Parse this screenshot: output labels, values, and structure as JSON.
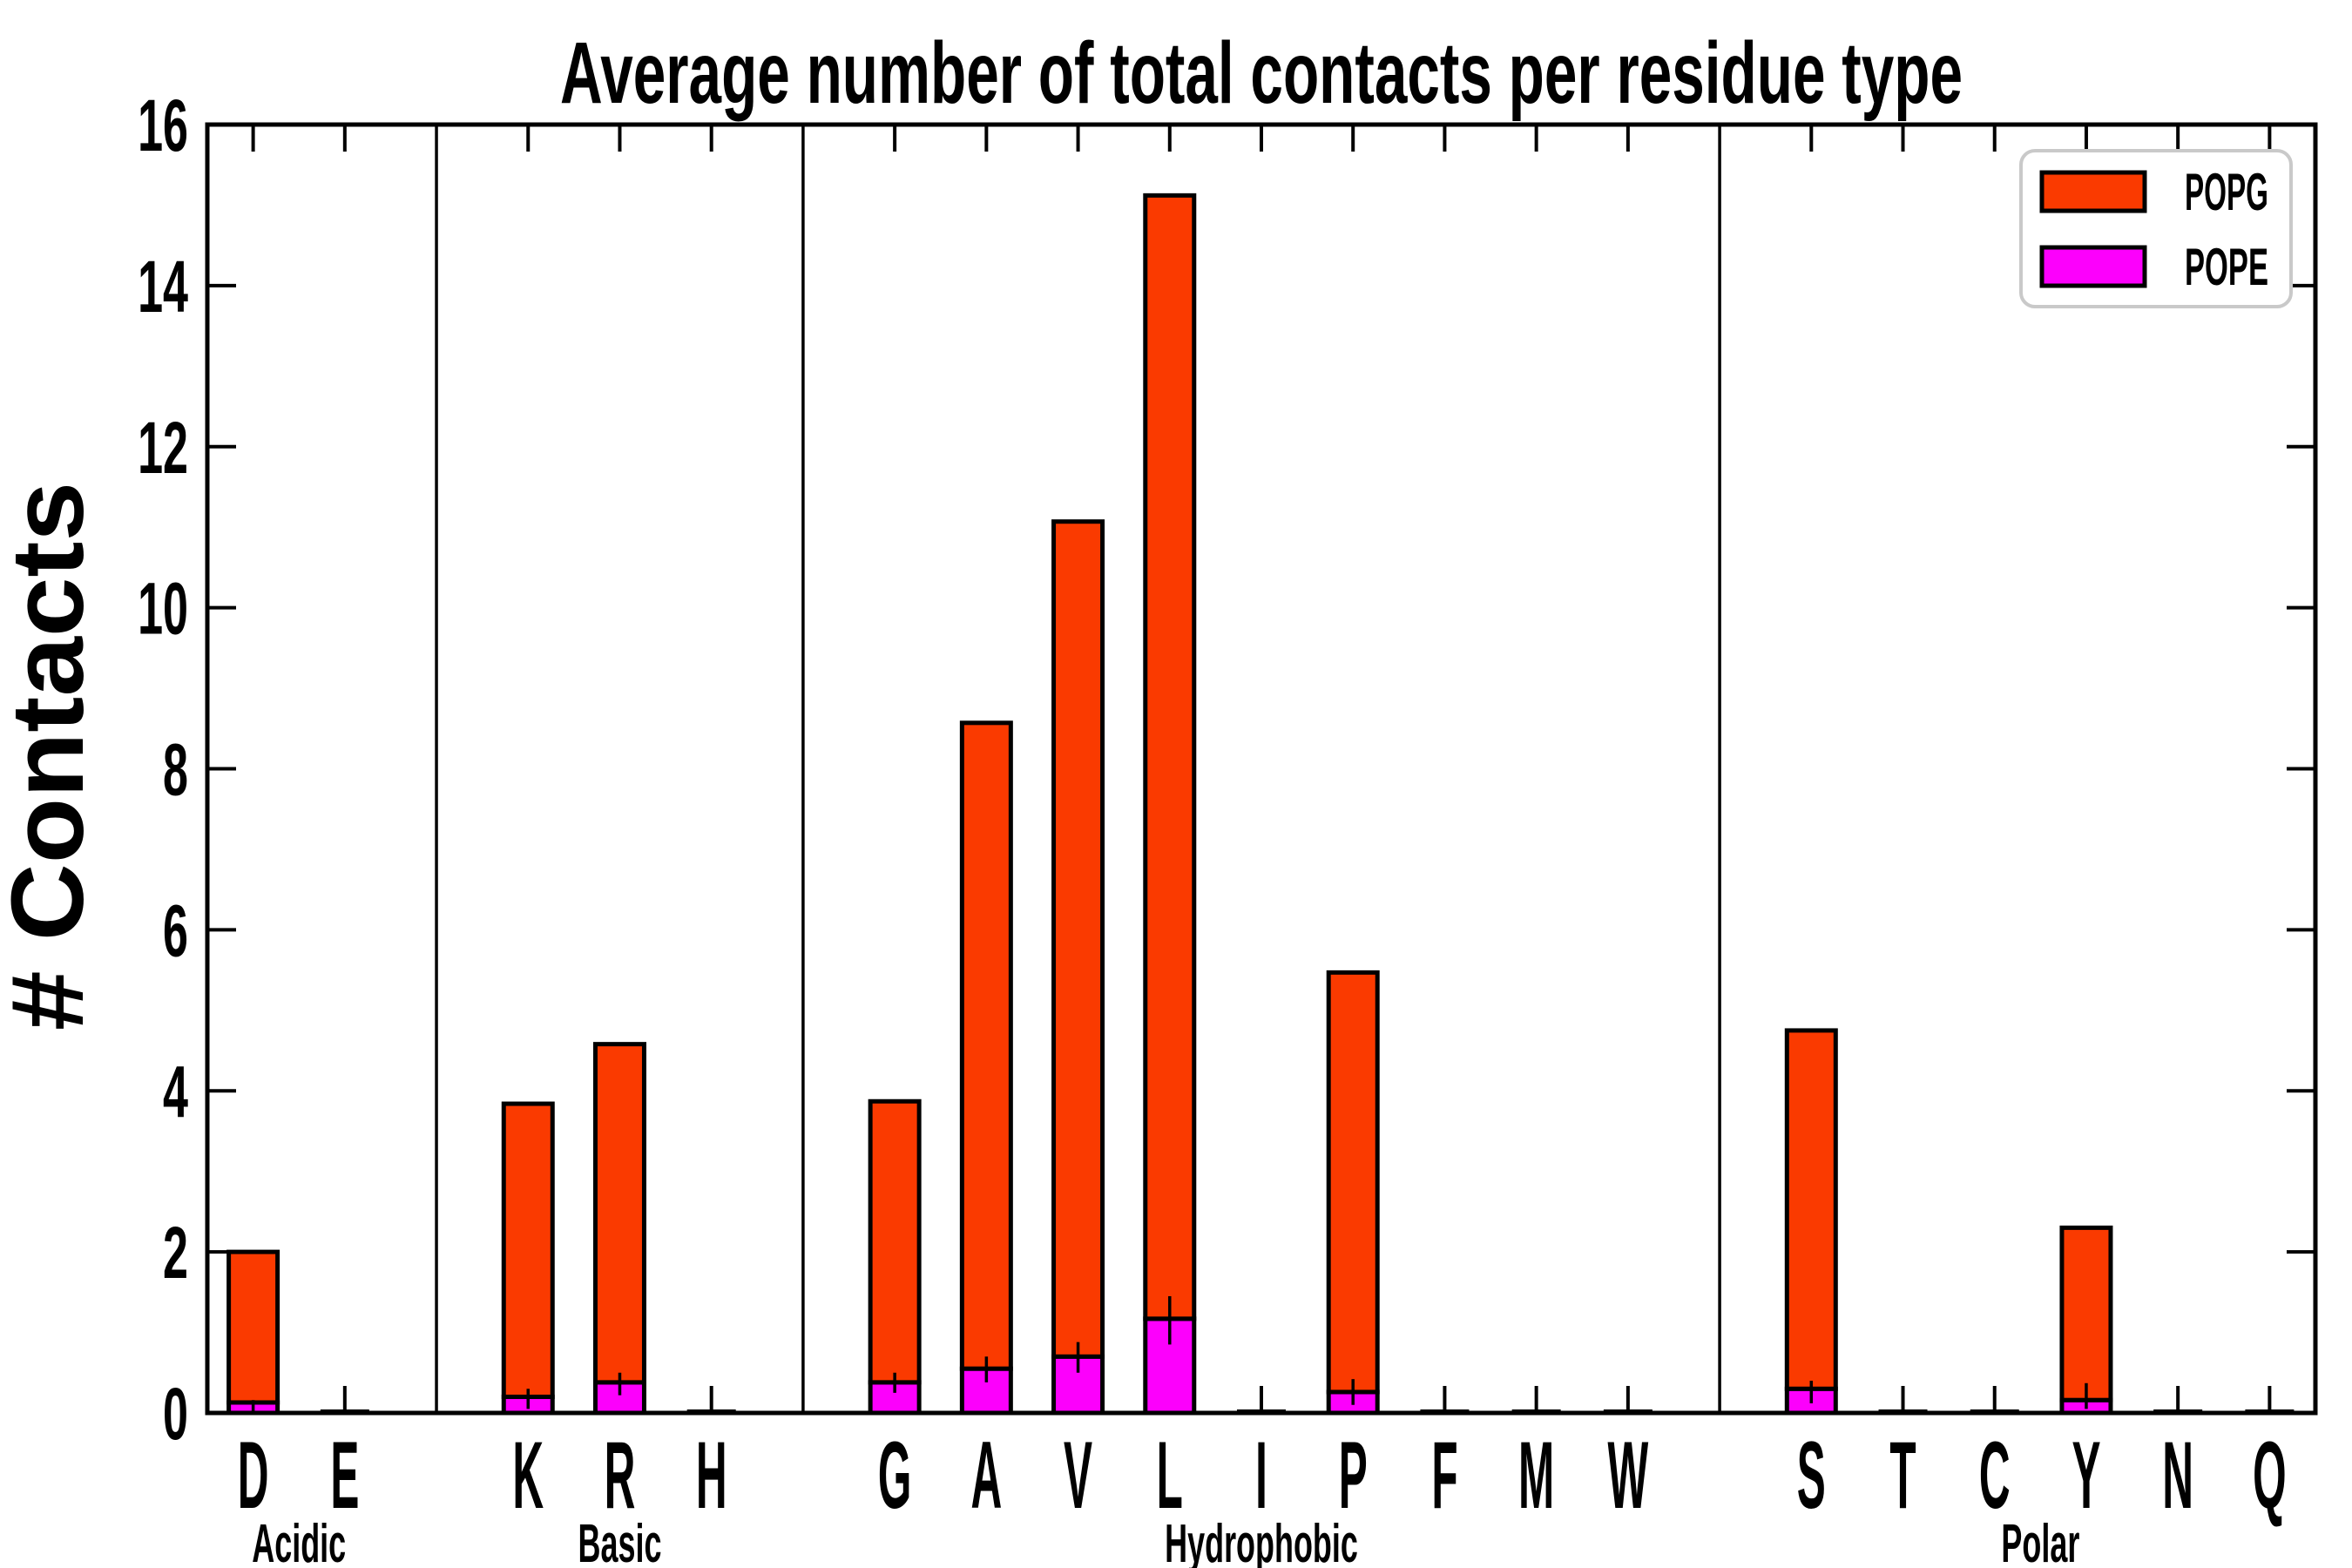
{
  "chart_data": {
    "type": "bar",
    "stacked": true,
    "title": "Average number of total contacts per residue type",
    "xlabel": "",
    "ylabel": "# Contacts",
    "ylim": [
      0,
      16
    ],
    "ytick_labels": [
      0,
      2,
      4,
      6,
      8,
      10,
      12,
      14,
      16
    ],
    "grid": false,
    "legend_position": "upper right",
    "bar_edge_color": "#000000",
    "series": [
      {
        "name": "POPG",
        "color": "#FA3A00",
        "stack_order": "top"
      },
      {
        "name": "POPE",
        "color": "#FC00FC",
        "stack_order": "bottom"
      }
    ],
    "groups": [
      {
        "label": "Acidic",
        "residues": [
          {
            "letter": "D",
            "POPE": 0.13,
            "POPG": 1.87,
            "total": 2.0,
            "whisker": [
              0.02,
              0.16
            ]
          },
          {
            "letter": "E",
            "POPE": 0.01,
            "POPG": 0.02,
            "total": 0.03,
            "whisker": null
          }
        ]
      },
      {
        "label": "Basic",
        "residues": [
          {
            "letter": "K",
            "POPE": 0.2,
            "POPG": 3.64,
            "total": 3.84,
            "whisker": [
              0.05,
              0.3
            ]
          },
          {
            "letter": "R",
            "POPE": 0.38,
            "POPG": 4.2,
            "total": 4.58,
            "whisker": [
              0.22,
              0.5
            ]
          },
          {
            "letter": "H",
            "POPE": 0.01,
            "POPG": 0.02,
            "total": 0.03,
            "whisker": null
          }
        ]
      },
      {
        "label": "Hydrophobic",
        "residues": [
          {
            "letter": "G",
            "POPE": 0.38,
            "POPG": 3.49,
            "total": 3.87,
            "whisker": [
              0.25,
              0.5
            ]
          },
          {
            "letter": "A",
            "POPE": 0.55,
            "POPG": 8.02,
            "total": 8.57,
            "whisker": [
              0.38,
              0.7
            ]
          },
          {
            "letter": "V",
            "POPE": 0.7,
            "POPG": 10.37,
            "total": 11.07,
            "whisker": [
              0.5,
              0.88
            ]
          },
          {
            "letter": "L",
            "POPE": 1.17,
            "POPG": 13.95,
            "total": 15.12,
            "whisker": [
              0.85,
              1.45
            ]
          },
          {
            "letter": "I",
            "POPE": 0.01,
            "POPG": 0.02,
            "total": 0.03,
            "whisker": null
          },
          {
            "letter": "P",
            "POPE": 0.26,
            "POPG": 5.21,
            "total": 5.47,
            "whisker": [
              0.1,
              0.42
            ]
          },
          {
            "letter": "F",
            "POPE": 0.01,
            "POPG": 0.02,
            "total": 0.03,
            "whisker": null
          },
          {
            "letter": "M",
            "POPE": 0.01,
            "POPG": 0.03,
            "total": 0.04,
            "whisker": null
          },
          {
            "letter": "W",
            "POPE": 0.01,
            "POPG": 0.03,
            "total": 0.04,
            "whisker": null
          }
        ]
      },
      {
        "label": "Polar",
        "residues": [
          {
            "letter": "S",
            "POPE": 0.3,
            "POPG": 4.45,
            "total": 4.75,
            "whisker": [
              0.12,
              0.4
            ]
          },
          {
            "letter": "T",
            "POPE": 0.01,
            "POPG": 0.03,
            "total": 0.04,
            "whisker": null
          },
          {
            "letter": "C",
            "POPE": 0.01,
            "POPG": 0.02,
            "total": 0.03,
            "whisker": null
          },
          {
            "letter": "Y",
            "POPE": 0.16,
            "POPG": 2.14,
            "total": 2.3,
            "whisker": [
              0.05,
              0.37
            ]
          },
          {
            "letter": "N",
            "POPE": 0.01,
            "POPG": 0.03,
            "total": 0.04,
            "whisker": null
          },
          {
            "letter": "Q",
            "POPE": 0.01,
            "POPG": 0.02,
            "total": 0.03,
            "whisker": null
          }
        ]
      }
    ]
  }
}
